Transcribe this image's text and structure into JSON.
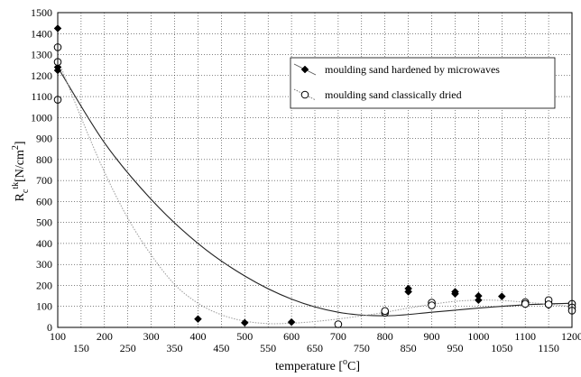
{
  "chart_data": {
    "type": "scatter",
    "title": "",
    "xlabel": "temperature [°C]",
    "ylabel": "Rcᵗᵏ [N/cm²]",
    "ylabel_parts": {
      "main": "R",
      "sub": "c",
      "sup": "tk",
      "unit_prefix": "[N/cm",
      "unit_exp": "2",
      "unit_suffix": "]"
    },
    "xlabel_parts": {
      "main": "temperature [",
      "sup": "o",
      "suffix": "C]"
    },
    "xlim": [
      100,
      1200
    ],
    "ylim": [
      0,
      1500
    ],
    "xticks": [
      100,
      150,
      200,
      250,
      300,
      350,
      400,
      450,
      500,
      550,
      600,
      650,
      700,
      750,
      800,
      850,
      900,
      950,
      1000,
      1050,
      1100,
      1150,
      1200
    ],
    "yticks": [
      0,
      100,
      200,
      300,
      400,
      500,
      600,
      700,
      800,
      900,
      1000,
      1100,
      1200,
      1300,
      1400,
      1500
    ],
    "grid": true,
    "legend_position": "top-right",
    "series": [
      {
        "name": "moulding sand hardened by microwaves",
        "marker": "filled-diamond",
        "color": "#000000",
        "points": [
          [
            100,
            1425
          ],
          [
            100,
            1240
          ],
          [
            100,
            1225
          ],
          [
            400,
            40
          ],
          [
            500,
            22
          ],
          [
            600,
            25
          ],
          [
            850,
            185
          ],
          [
            850,
            170
          ],
          [
            950,
            170
          ],
          [
            950,
            160
          ],
          [
            1000,
            150
          ],
          [
            1000,
            130
          ],
          [
            1050,
            148
          ],
          [
            1100,
            115
          ],
          [
            1150,
            120
          ],
          [
            1150,
            105
          ],
          [
            1200,
            110
          ]
        ],
        "trend": {
          "style": "solid",
          "color": "#222222",
          "points": [
            [
              100,
              1240
            ],
            [
              200,
              880
            ],
            [
              300,
              610
            ],
            [
              400,
              400
            ],
            [
              500,
              245
            ],
            [
              600,
              135
            ],
            [
              700,
              72
            ],
            [
              800,
              55
            ],
            [
              900,
              72
            ],
            [
              1000,
              92
            ],
            [
              1100,
              108
            ],
            [
              1200,
              115
            ]
          ]
        }
      },
      {
        "name": "moulding sand classically dried",
        "marker": "open-circle",
        "color": "#000000",
        "points": [
          [
            100,
            1335
          ],
          [
            100,
            1265
          ],
          [
            100,
            1085
          ],
          [
            700,
            15
          ],
          [
            800,
            70
          ],
          [
            800,
            78
          ],
          [
            900,
            118
          ],
          [
            900,
            105
          ],
          [
            1100,
            120
          ],
          [
            1100,
            112
          ],
          [
            1150,
            130
          ],
          [
            1150,
            110
          ],
          [
            1200,
            112
          ],
          [
            1200,
            95
          ],
          [
            1200,
            80
          ]
        ],
        "trend": {
          "style": "dotted",
          "color": "#9a9a9a",
          "points": [
            [
              100,
              1280
            ],
            [
              150,
              1000
            ],
            [
              200,
              740
            ],
            [
              250,
              520
            ],
            [
              300,
              345
            ],
            [
              350,
              205
            ],
            [
              400,
              115
            ],
            [
              450,
              60
            ],
            [
              500,
              30
            ],
            [
              550,
              18
            ],
            [
              600,
              20
            ],
            [
              650,
              28
            ],
            [
              700,
              40
            ],
            [
              750,
              55
            ],
            [
              800,
              72
            ],
            [
              850,
              92
            ],
            [
              900,
              110
            ],
            [
              950,
              124
            ],
            [
              1000,
              130
            ],
            [
              1050,
              128
            ],
            [
              1100,
              120
            ],
            [
              1150,
              110
            ],
            [
              1200,
              100
            ]
          ]
        }
      }
    ]
  }
}
